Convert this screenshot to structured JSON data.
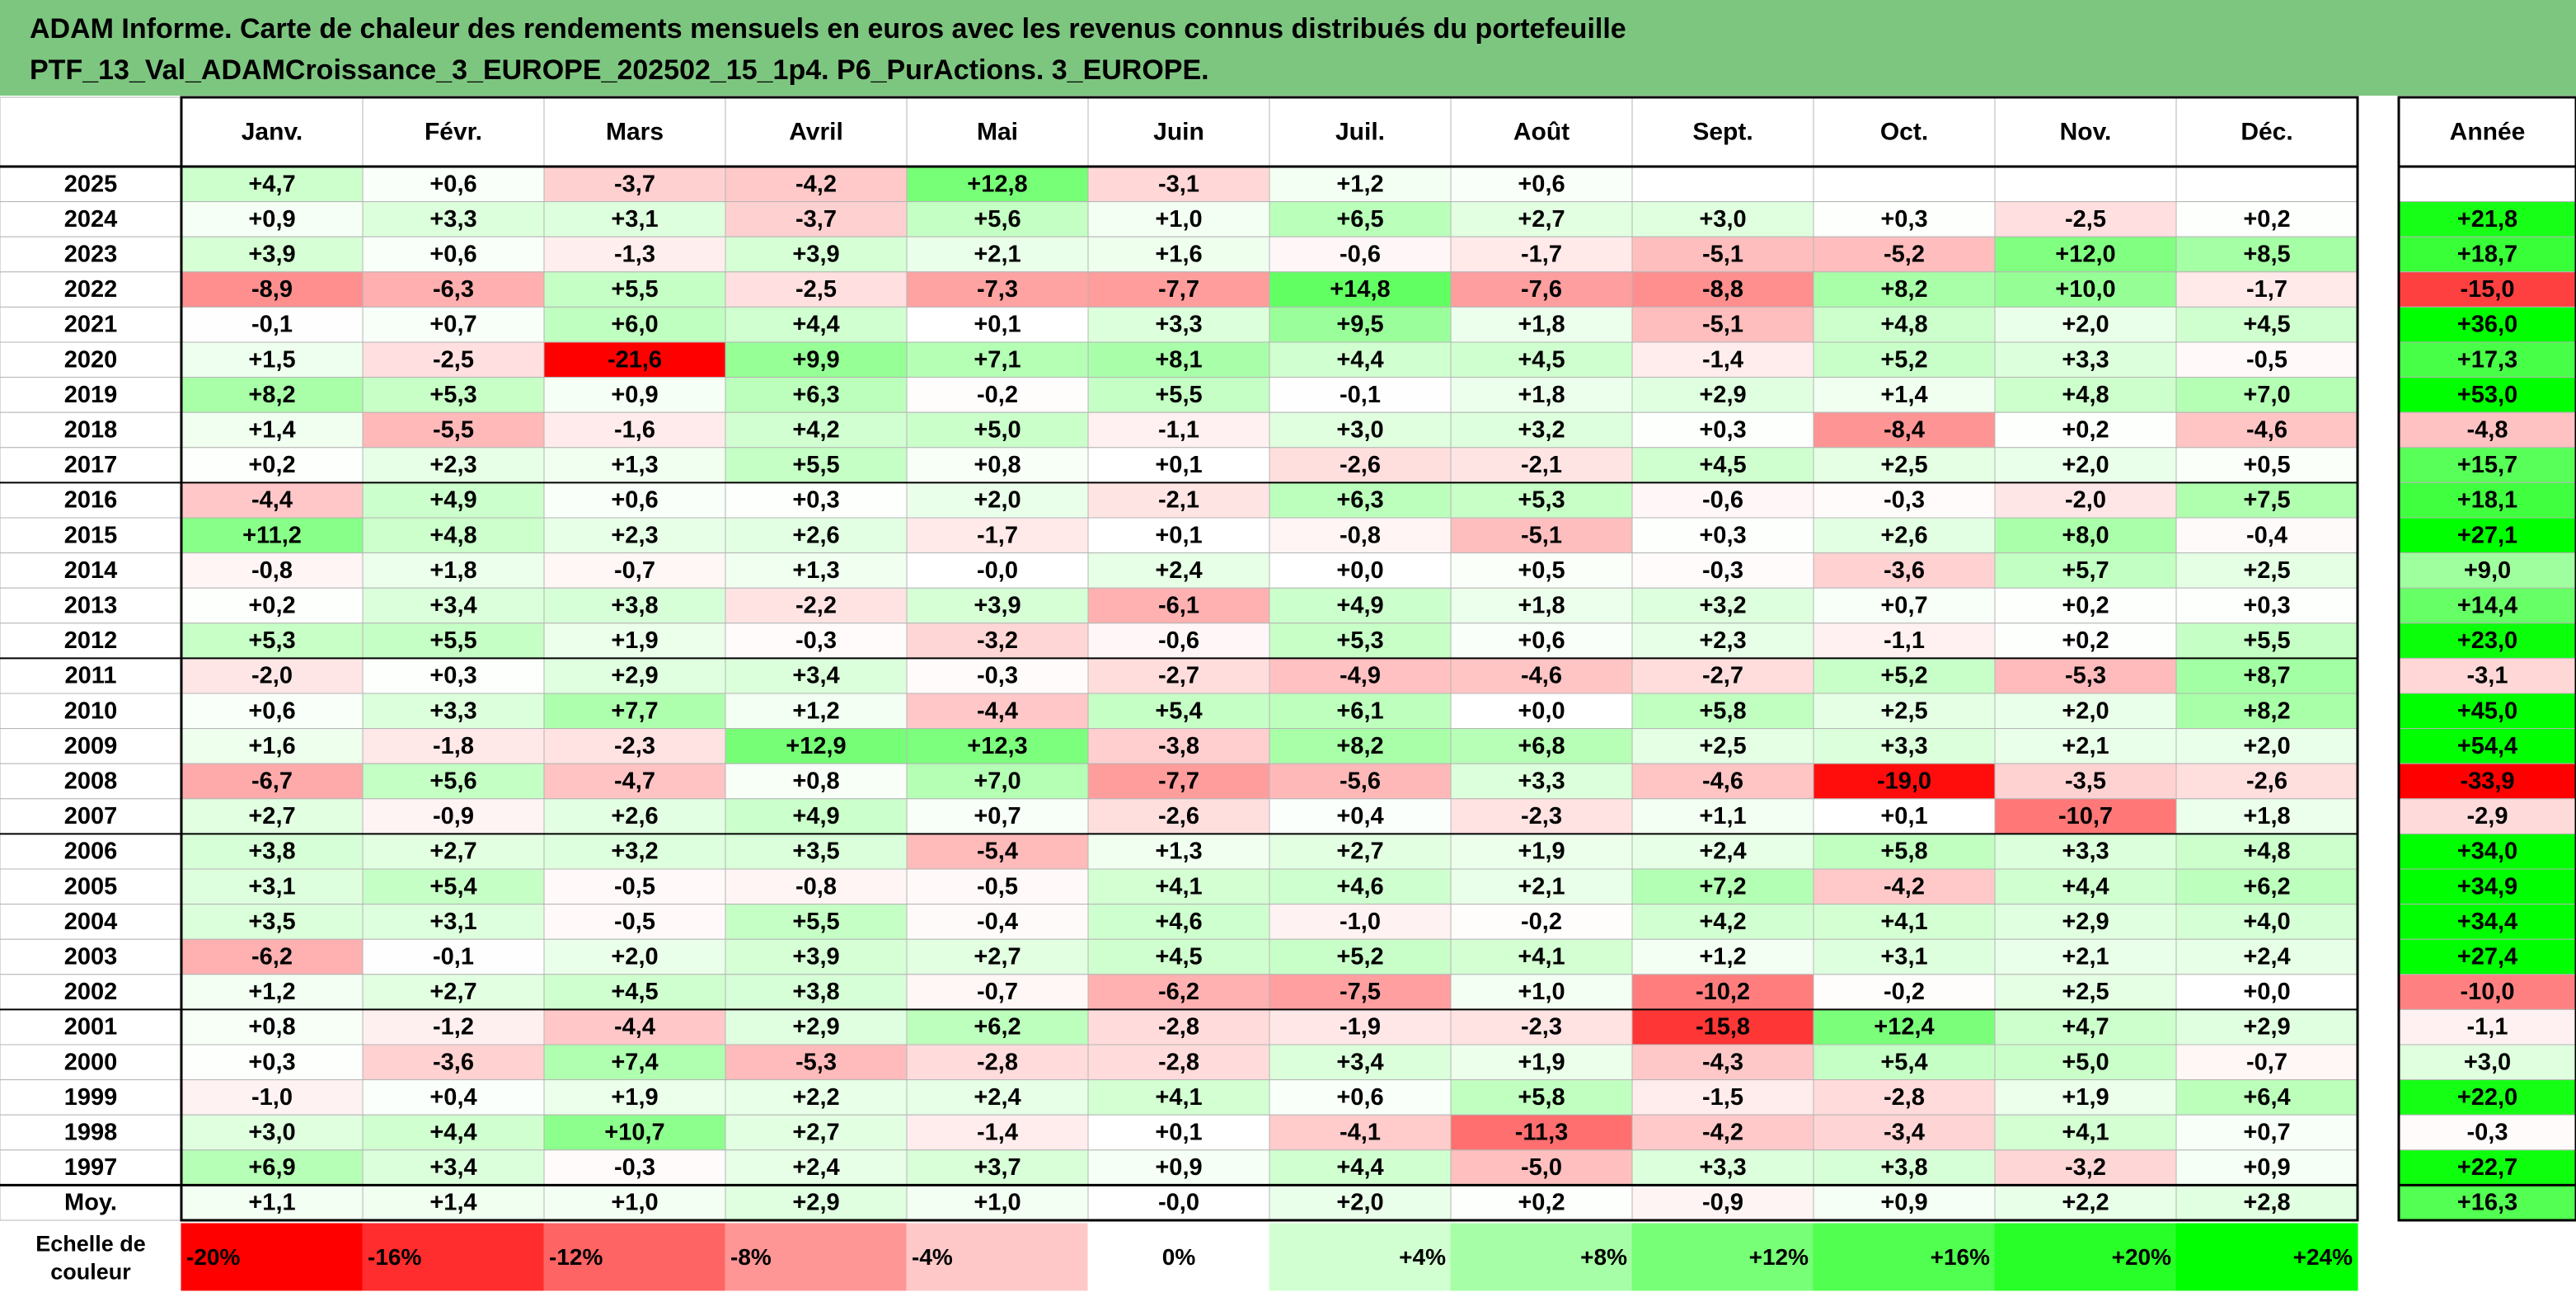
{
  "title": {
    "line1": "ADAM Informe. Carte de chaleur des rendements mensuels en euros avec les revenus connus distribués du portefeuille",
    "line2": "PTF_13_Val_ADAMCroissance_3_EUROPE_202502_15_1p4. P6_PurActions. 3_EUROPE."
  },
  "chart_data": {
    "type": "heatmap",
    "title": "ADAM Informe. Carte de chaleur des rendements mensuels en euros avec les revenus connus distribués du portefeuille PTF_13_Val_ADAMCroissance_3_EUROPE_202502_15_1p4. P6_PurActions. 3_EUROPE.",
    "columns": [
      "Janv.",
      "Févr.",
      "Mars",
      "Avril",
      "Mai",
      "Juin",
      "Juil.",
      "Août",
      "Sept.",
      "Oct.",
      "Nov.",
      "Déc."
    ],
    "year_column": "Année",
    "rows": [
      {
        "label": "2025",
        "months": [
          "+4,7",
          "+0,6",
          "-3,7",
          "-4,2",
          "+12,8",
          "-3,1",
          "+1,2",
          "+0,6",
          "",
          "",
          "",
          ""
        ],
        "year": ""
      },
      {
        "label": "2024",
        "months": [
          "+0,9",
          "+3,3",
          "+3,1",
          "-3,7",
          "+5,6",
          "+1,0",
          "+6,5",
          "+2,7",
          "+3,0",
          "+0,3",
          "-2,5",
          "+0,2"
        ],
        "year": "+21,8"
      },
      {
        "label": "2023",
        "months": [
          "+3,9",
          "+0,6",
          "-1,3",
          "+3,9",
          "+2,1",
          "+1,6",
          "-0,6",
          "-1,7",
          "-5,1",
          "-5,2",
          "+12,0",
          "+8,5"
        ],
        "year": "+18,7"
      },
      {
        "label": "2022",
        "months": [
          "-8,9",
          "-6,3",
          "+5,5",
          "-2,5",
          "-7,3",
          "-7,7",
          "+14,8",
          "-7,6",
          "-8,8",
          "+8,2",
          "+10,0",
          "-1,7"
        ],
        "year": "-15,0"
      },
      {
        "label": "2021",
        "months": [
          "-0,1",
          "+0,7",
          "+6,0",
          "+4,4",
          "+0,1",
          "+3,3",
          "+9,5",
          "+1,8",
          "-5,1",
          "+4,8",
          "+2,0",
          "+4,5"
        ],
        "year": "+36,0"
      },
      {
        "label": "2020",
        "months": [
          "+1,5",
          "-2,5",
          "-21,6",
          "+9,9",
          "+7,1",
          "+8,1",
          "+4,4",
          "+4,5",
          "-1,4",
          "+5,2",
          "+3,3",
          "-0,5"
        ],
        "year": "+17,3"
      },
      {
        "label": "2019",
        "months": [
          "+8,2",
          "+5,3",
          "+0,9",
          "+6,3",
          "-0,2",
          "+5,5",
          "-0,1",
          "+1,8",
          "+2,9",
          "+1,4",
          "+4,8",
          "+7,0"
        ],
        "year": "+53,0"
      },
      {
        "label": "2018",
        "months": [
          "+1,4",
          "-5,5",
          "-1,6",
          "+4,2",
          "+5,0",
          "-1,1",
          "+3,0",
          "+3,2",
          "+0,3",
          "-8,4",
          "+0,2",
          "-4,6"
        ],
        "year": "-4,8"
      },
      {
        "label": "2017",
        "months": [
          "+0,2",
          "+2,3",
          "+1,3",
          "+5,5",
          "+0,8",
          "+0,1",
          "-2,6",
          "-2,1",
          "+4,5",
          "+2,5",
          "+2,0",
          "+0,5"
        ],
        "year": "+15,7"
      },
      {
        "label": "2016",
        "months": [
          "-4,4",
          "+4,9",
          "+0,6",
          "+0,3",
          "+2,0",
          "-2,1",
          "+6,3",
          "+5,3",
          "-0,6",
          "-0,3",
          "-2,0",
          "+7,5"
        ],
        "year": "+18,1"
      },
      {
        "label": "2015",
        "months": [
          "+11,2",
          "+4,8",
          "+2,3",
          "+2,6",
          "-1,7",
          "+0,1",
          "-0,8",
          "-5,1",
          "+0,3",
          "+2,6",
          "+8,0",
          "-0,4"
        ],
        "year": "+27,1"
      },
      {
        "label": "2014",
        "months": [
          "-0,8",
          "+1,8",
          "-0,7",
          "+1,3",
          "-0,0",
          "+2,4",
          "+0,0",
          "+0,5",
          "-0,3",
          "-3,6",
          "+5,7",
          "+2,5"
        ],
        "year": "+9,0"
      },
      {
        "label": "2013",
        "months": [
          "+0,2",
          "+3,4",
          "+3,8",
          "-2,2",
          "+3,9",
          "-6,1",
          "+4,9",
          "+1,8",
          "+3,2",
          "+0,7",
          "+0,2",
          "+0,3"
        ],
        "year": "+14,4"
      },
      {
        "label": "2012",
        "months": [
          "+5,3",
          "+5,5",
          "+1,9",
          "-0,3",
          "-3,2",
          "-0,6",
          "+5,3",
          "+0,6",
          "+2,3",
          "-1,1",
          "+0,2",
          "+5,5"
        ],
        "year": "+23,0"
      },
      {
        "label": "2011",
        "months": [
          "-2,0",
          "+0,3",
          "+2,9",
          "+3,4",
          "-0,3",
          "-2,7",
          "-4,9",
          "-4,6",
          "-2,7",
          "+5,2",
          "-5,3",
          "+8,7"
        ],
        "year": "-3,1"
      },
      {
        "label": "2010",
        "months": [
          "+0,6",
          "+3,3",
          "+7,7",
          "+1,2",
          "-4,4",
          "+5,4",
          "+6,1",
          "+0,0",
          "+5,8",
          "+2,5",
          "+2,0",
          "+8,2"
        ],
        "year": "+45,0"
      },
      {
        "label": "2009",
        "months": [
          "+1,6",
          "-1,8",
          "-2,3",
          "+12,9",
          "+12,3",
          "-3,8",
          "+8,2",
          "+6,8",
          "+2,5",
          "+3,3",
          "+2,1",
          "+2,0"
        ],
        "year": "+54,4"
      },
      {
        "label": "2008",
        "months": [
          "-6,7",
          "+5,6",
          "-4,7",
          "+0,8",
          "+7,0",
          "-7,7",
          "-5,6",
          "+3,3",
          "-4,6",
          "-19,0",
          "-3,5",
          "-2,6"
        ],
        "year": "-33,9"
      },
      {
        "label": "2007",
        "months": [
          "+2,7",
          "-0,9",
          "+2,6",
          "+4,9",
          "+0,7",
          "-2,6",
          "+0,4",
          "-2,3",
          "+1,1",
          "+0,1",
          "-10,7",
          "+1,8"
        ],
        "year": "-2,9"
      },
      {
        "label": "2006",
        "months": [
          "+3,8",
          "+2,7",
          "+3,2",
          "+3,5",
          "-5,4",
          "+1,3",
          "+2,7",
          "+1,9",
          "+2,4",
          "+5,8",
          "+3,3",
          "+4,8"
        ],
        "year": "+34,0"
      },
      {
        "label": "2005",
        "months": [
          "+3,1",
          "+5,4",
          "-0,5",
          "-0,8",
          "-0,5",
          "+4,1",
          "+4,6",
          "+2,1",
          "+7,2",
          "-4,2",
          "+4,4",
          "+6,2"
        ],
        "year": "+34,9"
      },
      {
        "label": "2004",
        "months": [
          "+3,5",
          "+3,1",
          "-0,5",
          "+5,5",
          "-0,4",
          "+4,6",
          "-1,0",
          "-0,2",
          "+4,2",
          "+4,1",
          "+2,9",
          "+4,0"
        ],
        "year": "+34,4"
      },
      {
        "label": "2003",
        "months": [
          "-6,2",
          "-0,1",
          "+2,0",
          "+3,9",
          "+2,7",
          "+4,5",
          "+5,2",
          "+4,1",
          "+1,2",
          "+3,1",
          "+2,1",
          "+2,4"
        ],
        "year": "+27,4"
      },
      {
        "label": "2002",
        "months": [
          "+1,2",
          "+2,7",
          "+4,5",
          "+3,8",
          "-0,7",
          "-6,2",
          "-7,5",
          "+1,0",
          "-10,2",
          "-0,2",
          "+2,5",
          "+0,0"
        ],
        "year": "-10,0"
      },
      {
        "label": "2001",
        "months": [
          "+0,8",
          "-1,2",
          "-4,4",
          "+2,9",
          "+6,2",
          "-2,8",
          "-1,9",
          "-2,3",
          "-15,8",
          "+12,4",
          "+4,7",
          "+2,9"
        ],
        "year": "-1,1"
      },
      {
        "label": "2000",
        "months": [
          "+0,3",
          "-3,6",
          "+7,4",
          "-5,3",
          "-2,8",
          "-2,8",
          "+3,4",
          "+1,9",
          "-4,3",
          "+5,4",
          "+5,0",
          "-0,7"
        ],
        "year": "+3,0"
      },
      {
        "label": "1999",
        "months": [
          "-1,0",
          "+0,4",
          "+1,9",
          "+2,2",
          "+2,4",
          "+4,1",
          "+0,6",
          "+5,8",
          "-1,5",
          "-2,8",
          "+1,9",
          "+6,4"
        ],
        "year": "+22,0"
      },
      {
        "label": "1998",
        "months": [
          "+3,0",
          "+4,4",
          "+10,7",
          "+2,7",
          "-1,4",
          "+0,1",
          "-4,1",
          "-11,3",
          "-4,2",
          "-3,4",
          "+4,1",
          "+0,7"
        ],
        "year": "-0,3"
      },
      {
        "label": "1997",
        "months": [
          "+6,9",
          "+3,4",
          "-0,3",
          "+2,4",
          "+3,7",
          "+0,9",
          "+4,4",
          "-5,0",
          "+3,3",
          "+3,8",
          "-3,2",
          "+0,9"
        ],
        "year": "+22,7"
      }
    ],
    "average_row": {
      "label": "Moy.",
      "months": [
        "+1,1",
        "+1,4",
        "+1,0",
        "+2,9",
        "+1,0",
        "-0,0",
        "+2,0",
        "+0,2",
        "-0,9",
        "+0,9",
        "+2,2",
        "+2,8"
      ],
      "year": "+16,3"
    },
    "scale": {
      "label_line1": "Echelle de",
      "label_line2": "couleur",
      "steps": [
        {
          "label": "-20%",
          "value": -20,
          "color": "#ff0000"
        },
        {
          "label": "-16%",
          "value": -16,
          "color": "#ff2d2d"
        },
        {
          "label": "-12%",
          "value": -12,
          "color": "#ff6464"
        },
        {
          "label": "-8%",
          "value": -8,
          "color": "#ff9696"
        },
        {
          "label": "-4%",
          "value": -4,
          "color": "#ffc8c8"
        },
        {
          "label": "0%",
          "value": 0,
          "color": "#ffffff"
        },
        {
          "label": "+4%",
          "value": 4,
          "color": "#d2ffd2"
        },
        {
          "label": "+8%",
          "value": 8,
          "color": "#a6ffa6"
        },
        {
          "label": "+12%",
          "value": 12,
          "color": "#78ff78"
        },
        {
          "label": "+16%",
          "value": 16,
          "color": "#50ff50"
        },
        {
          "label": "+20%",
          "value": 20,
          "color": "#28ff28"
        },
        {
          "label": "+24%",
          "value": 24,
          "color": "#00ff00"
        }
      ]
    },
    "colors": {
      "title_background": "#7dc680",
      "negative_max": "#ff0000",
      "positive_max": "#00ff00",
      "neutral": "#ffffff"
    }
  }
}
